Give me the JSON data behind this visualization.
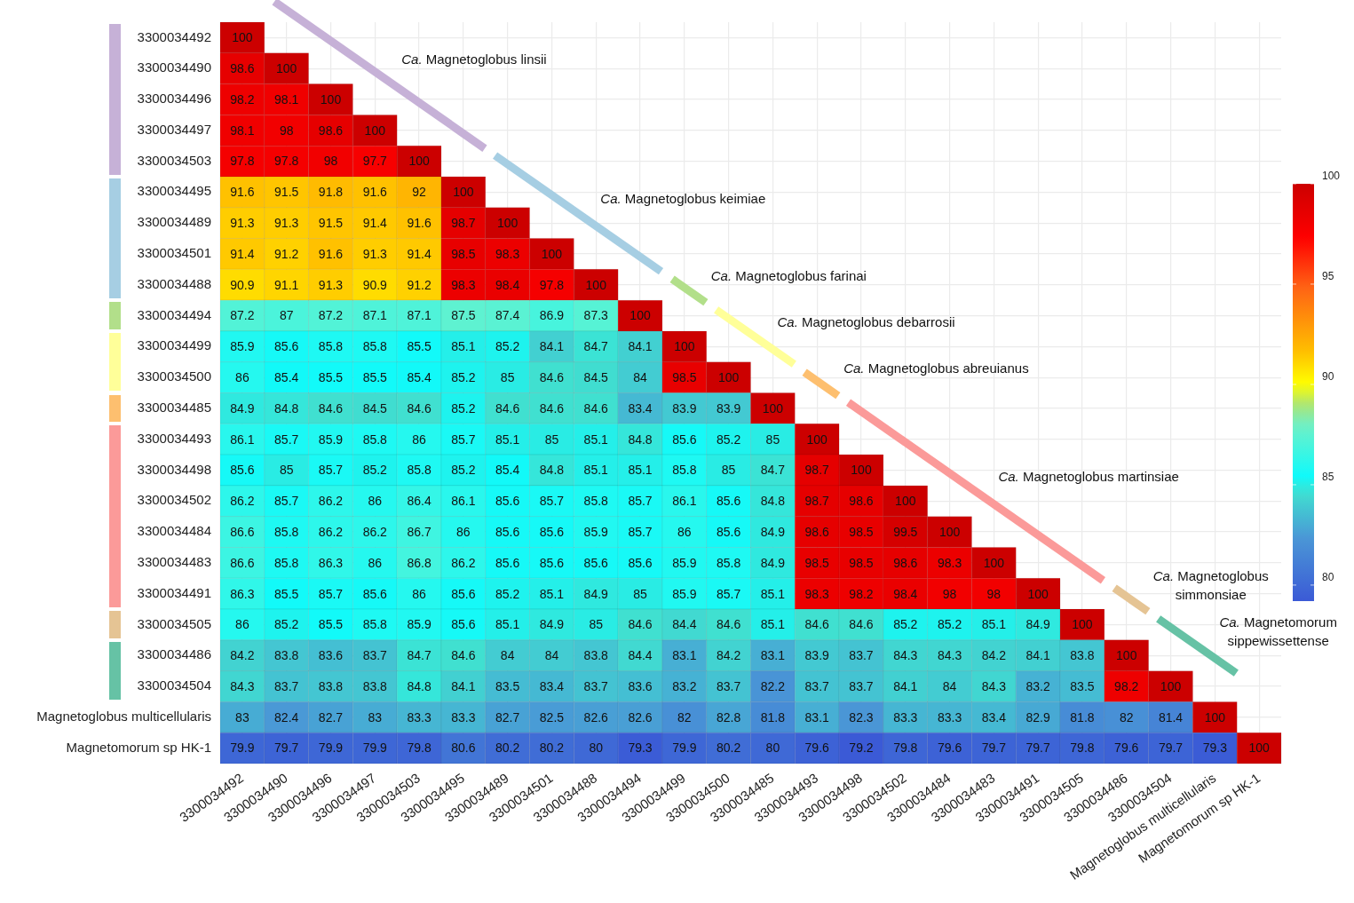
{
  "chart_data": {
    "type": "heatmap",
    "categories": [
      "3300034492",
      "3300034490",
      "3300034496",
      "3300034497",
      "3300034503",
      "3300034495",
      "3300034489",
      "3300034501",
      "3300034488",
      "3300034494",
      "3300034499",
      "3300034500",
      "3300034485",
      "3300034493",
      "3300034498",
      "3300034502",
      "3300034484",
      "3300034483",
      "3300034491",
      "3300034505",
      "3300034486",
      "3300034504",
      "Magnetoglobus multicellularis",
      "Magnetomorum sp HK-1"
    ],
    "y_categories": [
      "3300034492",
      "3300034490",
      "3300034496",
      "3300034497",
      "3300034503",
      "3300034495",
      "3300034489",
      "3300034501",
      "3300034488",
      "3300034494",
      "3300034499",
      "3300034500",
      "3300034485",
      "3300034493",
      "3300034498",
      "3300034502",
      "3300034484",
      "3300034483",
      "3300034491",
      "3300034505",
      "3300034486",
      "3300034504",
      "Magnetoglobus multicellularis",
      "Magnetomorum sp HK-1"
    ],
    "cells": [
      [
        100,
        null,
        null,
        null,
        null,
        null,
        null,
        null,
        null,
        null,
        null,
        null,
        null,
        null,
        null,
        null,
        null,
        null,
        null,
        null,
        null,
        null,
        null,
        null
      ],
      [
        98.6,
        100,
        null,
        null,
        null,
        null,
        null,
        null,
        null,
        null,
        null,
        null,
        null,
        null,
        null,
        null,
        null,
        null,
        null,
        null,
        null,
        null,
        null,
        null
      ],
      [
        98.2,
        98.1,
        100,
        null,
        null,
        null,
        null,
        null,
        null,
        null,
        null,
        null,
        null,
        null,
        null,
        null,
        null,
        null,
        null,
        null,
        null,
        null,
        null,
        null
      ],
      [
        98.1,
        98,
        98.6,
        100,
        null,
        null,
        null,
        null,
        null,
        null,
        null,
        null,
        null,
        null,
        null,
        null,
        null,
        null,
        null,
        null,
        null,
        null,
        null,
        null
      ],
      [
        97.8,
        97.8,
        98,
        97.7,
        100,
        null,
        null,
        null,
        null,
        null,
        null,
        null,
        null,
        null,
        null,
        null,
        null,
        null,
        null,
        null,
        null,
        null,
        null,
        null
      ],
      [
        91.6,
        91.5,
        91.8,
        91.6,
        92,
        100,
        null,
        null,
        null,
        null,
        null,
        null,
        null,
        null,
        null,
        null,
        null,
        null,
        null,
        null,
        null,
        null,
        null,
        null
      ],
      [
        91.3,
        91.3,
        91.5,
        91.4,
        91.6,
        98.7,
        100,
        null,
        null,
        null,
        null,
        null,
        null,
        null,
        null,
        null,
        null,
        null,
        null,
        null,
        null,
        null,
        null,
        null
      ],
      [
        91.4,
        91.2,
        91.6,
        91.3,
        91.4,
        98.5,
        98.3,
        100,
        null,
        null,
        null,
        null,
        null,
        null,
        null,
        null,
        null,
        null,
        null,
        null,
        null,
        null,
        null,
        null
      ],
      [
        90.9,
        91.1,
        91.3,
        90.9,
        91.2,
        98.3,
        98.4,
        97.8,
        100,
        null,
        null,
        null,
        null,
        null,
        null,
        null,
        null,
        null,
        null,
        null,
        null,
        null,
        null,
        null
      ],
      [
        87.2,
        87,
        87.2,
        87.1,
        87.1,
        87.5,
        87.4,
        86.9,
        87.3,
        100,
        null,
        null,
        null,
        null,
        null,
        null,
        null,
        null,
        null,
        null,
        null,
        null,
        null,
        null
      ],
      [
        85.9,
        85.6,
        85.8,
        85.8,
        85.5,
        85.1,
        85.2,
        84.1,
        84.7,
        84.1,
        100,
        null,
        null,
        null,
        null,
        null,
        null,
        null,
        null,
        null,
        null,
        null,
        null,
        null
      ],
      [
        86,
        85.4,
        85.5,
        85.5,
        85.4,
        85.2,
        85,
        84.6,
        84.5,
        84,
        98.5,
        100,
        null,
        null,
        null,
        null,
        null,
        null,
        null,
        null,
        null,
        null,
        null,
        null
      ],
      [
        84.9,
        84.8,
        84.6,
        84.5,
        84.6,
        85.2,
        84.6,
        84.6,
        84.6,
        83.4,
        83.9,
        83.9,
        100,
        null,
        null,
        null,
        null,
        null,
        null,
        null,
        null,
        null,
        null,
        null
      ],
      [
        86.1,
        85.7,
        85.9,
        85.8,
        86,
        85.7,
        85.1,
        85,
        85.1,
        84.8,
        85.6,
        85.2,
        85,
        100,
        null,
        null,
        null,
        null,
        null,
        null,
        null,
        null,
        null,
        null
      ],
      [
        85.6,
        85,
        85.7,
        85.2,
        85.8,
        85.2,
        85.4,
        84.8,
        85.1,
        85.1,
        85.8,
        85,
        84.7,
        98.7,
        100,
        null,
        null,
        null,
        null,
        null,
        null,
        null,
        null,
        null
      ],
      [
        86.2,
        85.7,
        86.2,
        86,
        86.4,
        86.1,
        85.6,
        85.7,
        85.8,
        85.7,
        86.1,
        85.6,
        84.8,
        98.7,
        98.6,
        100,
        null,
        null,
        null,
        null,
        null,
        null,
        null,
        null
      ],
      [
        86.6,
        85.8,
        86.2,
        86.2,
        86.7,
        86,
        85.6,
        85.6,
        85.9,
        85.7,
        86,
        85.6,
        84.9,
        98.6,
        98.5,
        99.5,
        100,
        null,
        null,
        null,
        null,
        null,
        null,
        null
      ],
      [
        86.6,
        85.8,
        86.3,
        86,
        86.8,
        86.2,
        85.6,
        85.6,
        85.6,
        85.6,
        85.9,
        85.8,
        84.9,
        98.5,
        98.5,
        98.6,
        98.3,
        100,
        null,
        null,
        null,
        null,
        null,
        null
      ],
      [
        86.3,
        85.5,
        85.7,
        85.6,
        86,
        85.6,
        85.2,
        85.1,
        84.9,
        85,
        85.9,
        85.7,
        85.1,
        98.3,
        98.2,
        98.4,
        98,
        98,
        100,
        null,
        null,
        null,
        null,
        null
      ],
      [
        86,
        85.2,
        85.5,
        85.8,
        85.9,
        85.6,
        85.1,
        84.9,
        85,
        84.6,
        84.4,
        84.6,
        85.1,
        84.6,
        84.6,
        85.2,
        85.2,
        85.1,
        84.9,
        100,
        null,
        null,
        null,
        null
      ],
      [
        84.2,
        83.8,
        83.6,
        83.7,
        84.7,
        84.6,
        84,
        84,
        83.8,
        84.4,
        83.1,
        84.2,
        83.1,
        83.9,
        83.7,
        84.3,
        84.3,
        84.2,
        84.1,
        83.8,
        100,
        null,
        null,
        null
      ],
      [
        84.3,
        83.7,
        83.8,
        83.8,
        84.8,
        84.1,
        83.5,
        83.4,
        83.7,
        83.6,
        83.2,
        83.7,
        82.2,
        83.7,
        83.7,
        84.1,
        84,
        84.3,
        83.2,
        83.5,
        98.2,
        100,
        null,
        null
      ],
      [
        83,
        82.4,
        82.7,
        83,
        83.3,
        83.3,
        82.7,
        82.5,
        82.6,
        82.6,
        82,
        82.8,
        81.8,
        83.1,
        82.3,
        83.3,
        83.3,
        83.4,
        82.9,
        81.8,
        82,
        81.4,
        100,
        null
      ],
      [
        79.9,
        79.7,
        79.9,
        79.9,
        79.8,
        80.6,
        80.2,
        80.2,
        80,
        79.3,
        79.9,
        80.2,
        80,
        79.6,
        79.2,
        79.8,
        79.6,
        79.7,
        79.7,
        79.8,
        79.6,
        79.7,
        79.3,
        100
      ]
    ],
    "clim": [
      79.2,
      100
    ],
    "cticks": [
      80,
      85,
      90,
      95,
      100
    ],
    "data_labels": true,
    "grid": true,
    "annotations": [
      "Ca. Magnetoglobus linsii",
      "Ca. Magnetoglobus keimiae",
      "Ca. Magnetoglobus farinai",
      "Ca. Magnetoglobus debarrosii",
      "Ca. Magnetoglobus abreuianus",
      "Ca. Magnetoglobus martinsiae",
      "Ca. Magnetoglobus simmonsiae",
      "Ca. Magnetomorum sippewissettense"
    ]
  }
}
